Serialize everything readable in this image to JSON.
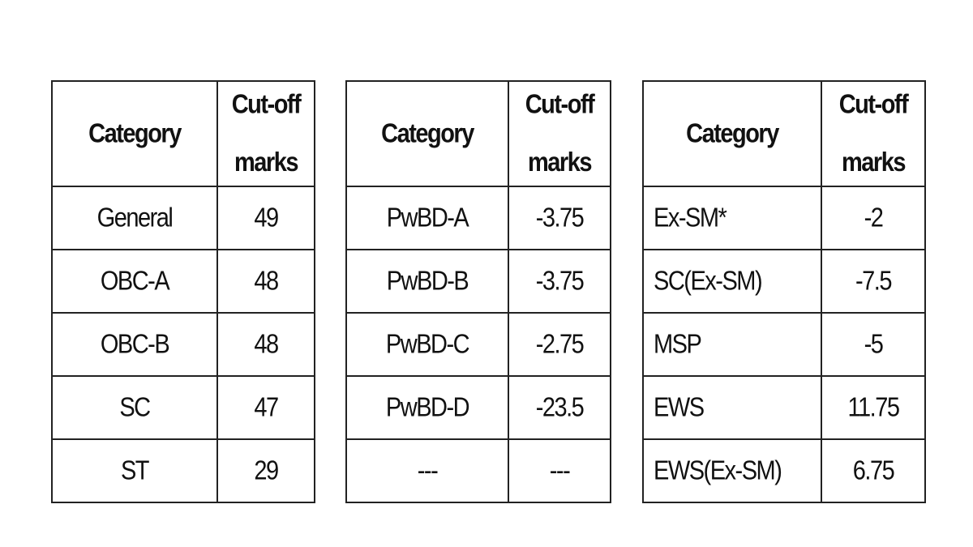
{
  "tables": [
    {
      "header": [
        "Category",
        "Cut-off marks"
      ],
      "rows": [
        [
          "General",
          "49"
        ],
        [
          "OBC-A",
          "48"
        ],
        [
          "OBC-B",
          "48"
        ],
        [
          "SC",
          "47"
        ],
        [
          "ST",
          "29"
        ]
      ]
    },
    {
      "header": [
        "Category",
        "Cut-off marks"
      ],
      "rows": [
        [
          "PwBD-A",
          "-3.75"
        ],
        [
          "PwBD-B",
          "-3.75"
        ],
        [
          "PwBD-C",
          "-2.75"
        ],
        [
          "PwBD-D",
          "-23.5"
        ],
        [
          "---",
          "---"
        ]
      ]
    },
    {
      "header": [
        "Category",
        "Cut-off marks"
      ],
      "rows": [
        [
          "Ex-SM*",
          "-2"
        ],
        [
          "SC(Ex-SM)",
          "-7.5"
        ],
        [
          "MSP",
          "-5"
        ],
        [
          "EWS",
          "11.75"
        ],
        [
          "EWS(Ex-SM)",
          "6.75"
        ]
      ]
    }
  ]
}
